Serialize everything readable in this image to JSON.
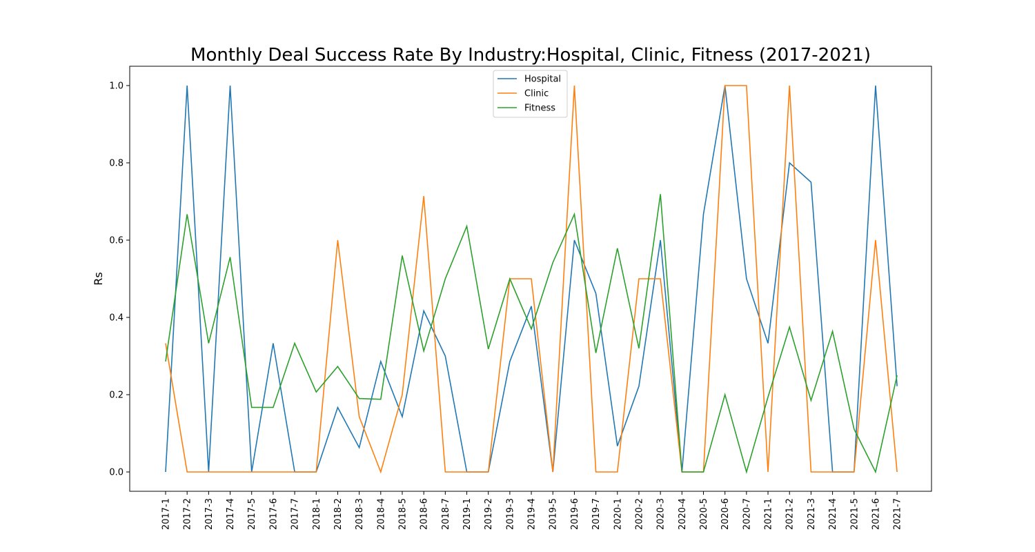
{
  "chart_data": {
    "type": "line",
    "title": "Monthly Deal Success Rate By Industry:Hospital, Clinic, Fitness (2017-2021)",
    "xlabel": "",
    "ylabel": "Rs",
    "ylim": [
      -0.05,
      1.05
    ],
    "yticks": [
      0.0,
      0.2,
      0.4,
      0.6,
      0.8,
      1.0
    ],
    "ytick_labels": [
      "0.0",
      "0.2",
      "0.4",
      "0.6",
      "0.8",
      "1.0"
    ],
    "legend_position": "top-center",
    "grid": false,
    "categories": [
      "2017-1",
      "2017-2",
      "2017-3",
      "2017-4",
      "2017-5",
      "2017-6",
      "2017-7",
      "2018-1",
      "2018-2",
      "2018-3",
      "2018-4",
      "2018-5",
      "2018-6",
      "2018-7",
      "2019-1",
      "2019-2",
      "2019-3",
      "2019-4",
      "2019-5",
      "2019-6",
      "2019-7",
      "2020-1",
      "2020-2",
      "2020-3",
      "2020-4",
      "2020-5",
      "2020-6",
      "2020-7",
      "2021-1",
      "2021-2",
      "2021-3",
      "2021-4",
      "2021-5",
      "2021-6",
      "2021-7"
    ],
    "series": [
      {
        "name": "Hospital",
        "color": "#1f77b4",
        "values": [
          0.0,
          1.0,
          0.0,
          1.0,
          0.0,
          0.333,
          0.0,
          0.0,
          0.167,
          0.063,
          0.286,
          0.143,
          0.417,
          0.3,
          0.0,
          0.0,
          0.286,
          0.429,
          0.0,
          0.6,
          0.462,
          0.067,
          0.222,
          0.6,
          0.0,
          0.667,
          1.0,
          0.5,
          0.333,
          0.8,
          0.75,
          0.0,
          0.0,
          1.0,
          0.222
        ]
      },
      {
        "name": "Clinic",
        "color": "#ff7f0e",
        "values": [
          0.333,
          0.0,
          0.0,
          0.0,
          0.0,
          0.0,
          0.0,
          0.0,
          0.6,
          0.143,
          0.0,
          0.2,
          0.714,
          0.0,
          0.0,
          0.0,
          0.5,
          0.5,
          0.0,
          1.0,
          0.0,
          0.0,
          0.5,
          0.5,
          0.0,
          0.0,
          1.0,
          1.0,
          0.0,
          1.0,
          0.0,
          0.0,
          0.0,
          0.6,
          0.0
        ]
      },
      {
        "name": "Fitness",
        "color": "#2ca02c",
        "values": [
          0.286,
          0.667,
          0.333,
          0.556,
          0.167,
          0.167,
          0.333,
          0.207,
          0.273,
          0.19,
          0.188,
          0.56,
          0.313,
          0.5,
          0.636,
          0.318,
          0.5,
          0.37,
          0.542,
          0.667,
          0.308,
          0.579,
          0.32,
          0.719,
          0.0,
          0.0,
          0.2,
          0.0,
          0.194,
          0.375,
          0.185,
          0.364,
          0.111,
          0.0,
          0.25
        ]
      }
    ]
  }
}
